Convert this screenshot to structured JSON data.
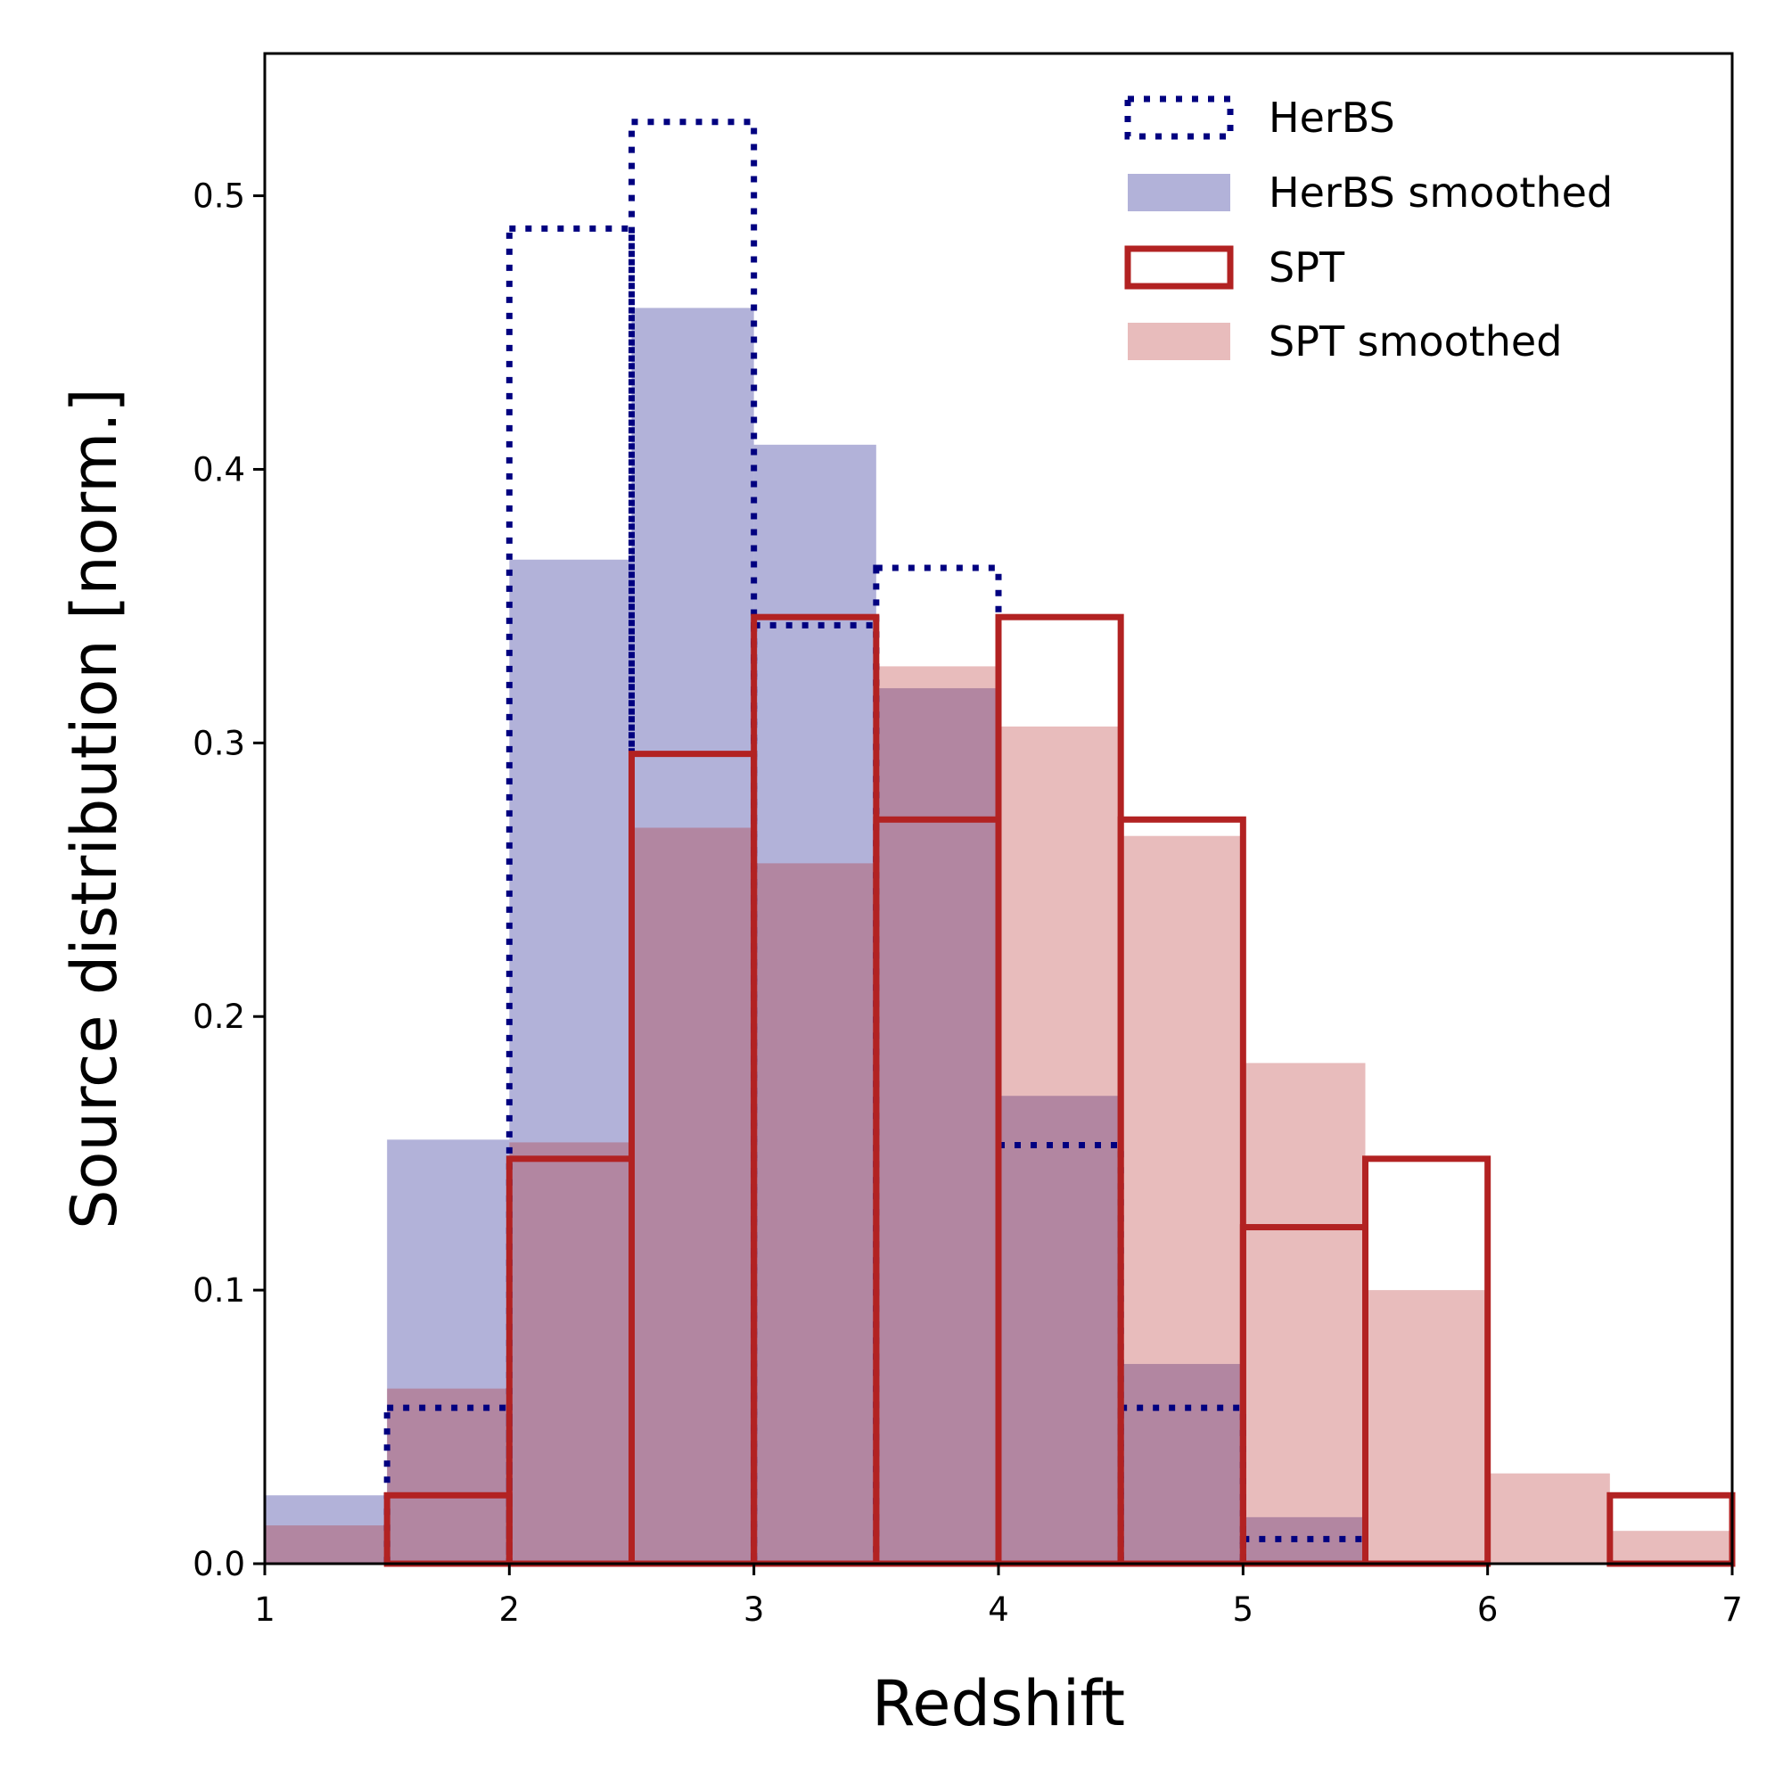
{
  "chart_data": {
    "type": "bar",
    "subtype": "histogram",
    "title": "",
    "xlabel": "Redshift",
    "ylabel": "Source distribution [norm.]",
    "xlim": [
      1,
      7
    ],
    "ylim": [
      0,
      0.552
    ],
    "xticks": [
      1,
      2,
      3,
      4,
      5,
      6,
      7
    ],
    "yticks": [
      0.0,
      0.1,
      0.2,
      0.3,
      0.4,
      0.5
    ],
    "ytick_labels": [
      "0.0",
      "0.1",
      "0.2",
      "0.3",
      "0.4",
      "0.5"
    ],
    "bin_edges": [
      1.0,
      1.5,
      2.0,
      2.5,
      3.0,
      3.5,
      4.0,
      4.5,
      5.0,
      5.5,
      6.0,
      6.5,
      7.0
    ],
    "legend_position": "top-right",
    "series": [
      {
        "name": "HerBS",
        "style": "step-dotted",
        "color": "#000080",
        "values": [
          0.0,
          0.057,
          0.488,
          0.527,
          0.343,
          0.364,
          0.153,
          0.057,
          0.009,
          0.0,
          0.0,
          0.0
        ]
      },
      {
        "name": "HerBS smoothed",
        "style": "filled",
        "color": "#000080",
        "alpha": 0.3,
        "values": [
          0.025,
          0.155,
          0.367,
          0.459,
          0.409,
          0.32,
          0.171,
          0.073,
          0.017,
          0.001,
          0.0,
          0.0
        ]
      },
      {
        "name": "SPT",
        "style": "step-solid",
        "color": "#b22222",
        "values": [
          0.0,
          0.025,
          0.148,
          0.296,
          0.346,
          0.272,
          0.346,
          0.272,
          0.123,
          0.148,
          0.0,
          0.025
        ]
      },
      {
        "name": "SPT smoothed",
        "style": "filled",
        "color": "#b22222",
        "alpha": 0.3,
        "values": [
          0.014,
          0.064,
          0.154,
          0.269,
          0.256,
          0.328,
          0.306,
          0.266,
          0.183,
          0.1,
          0.033,
          0.012
        ]
      }
    ]
  }
}
